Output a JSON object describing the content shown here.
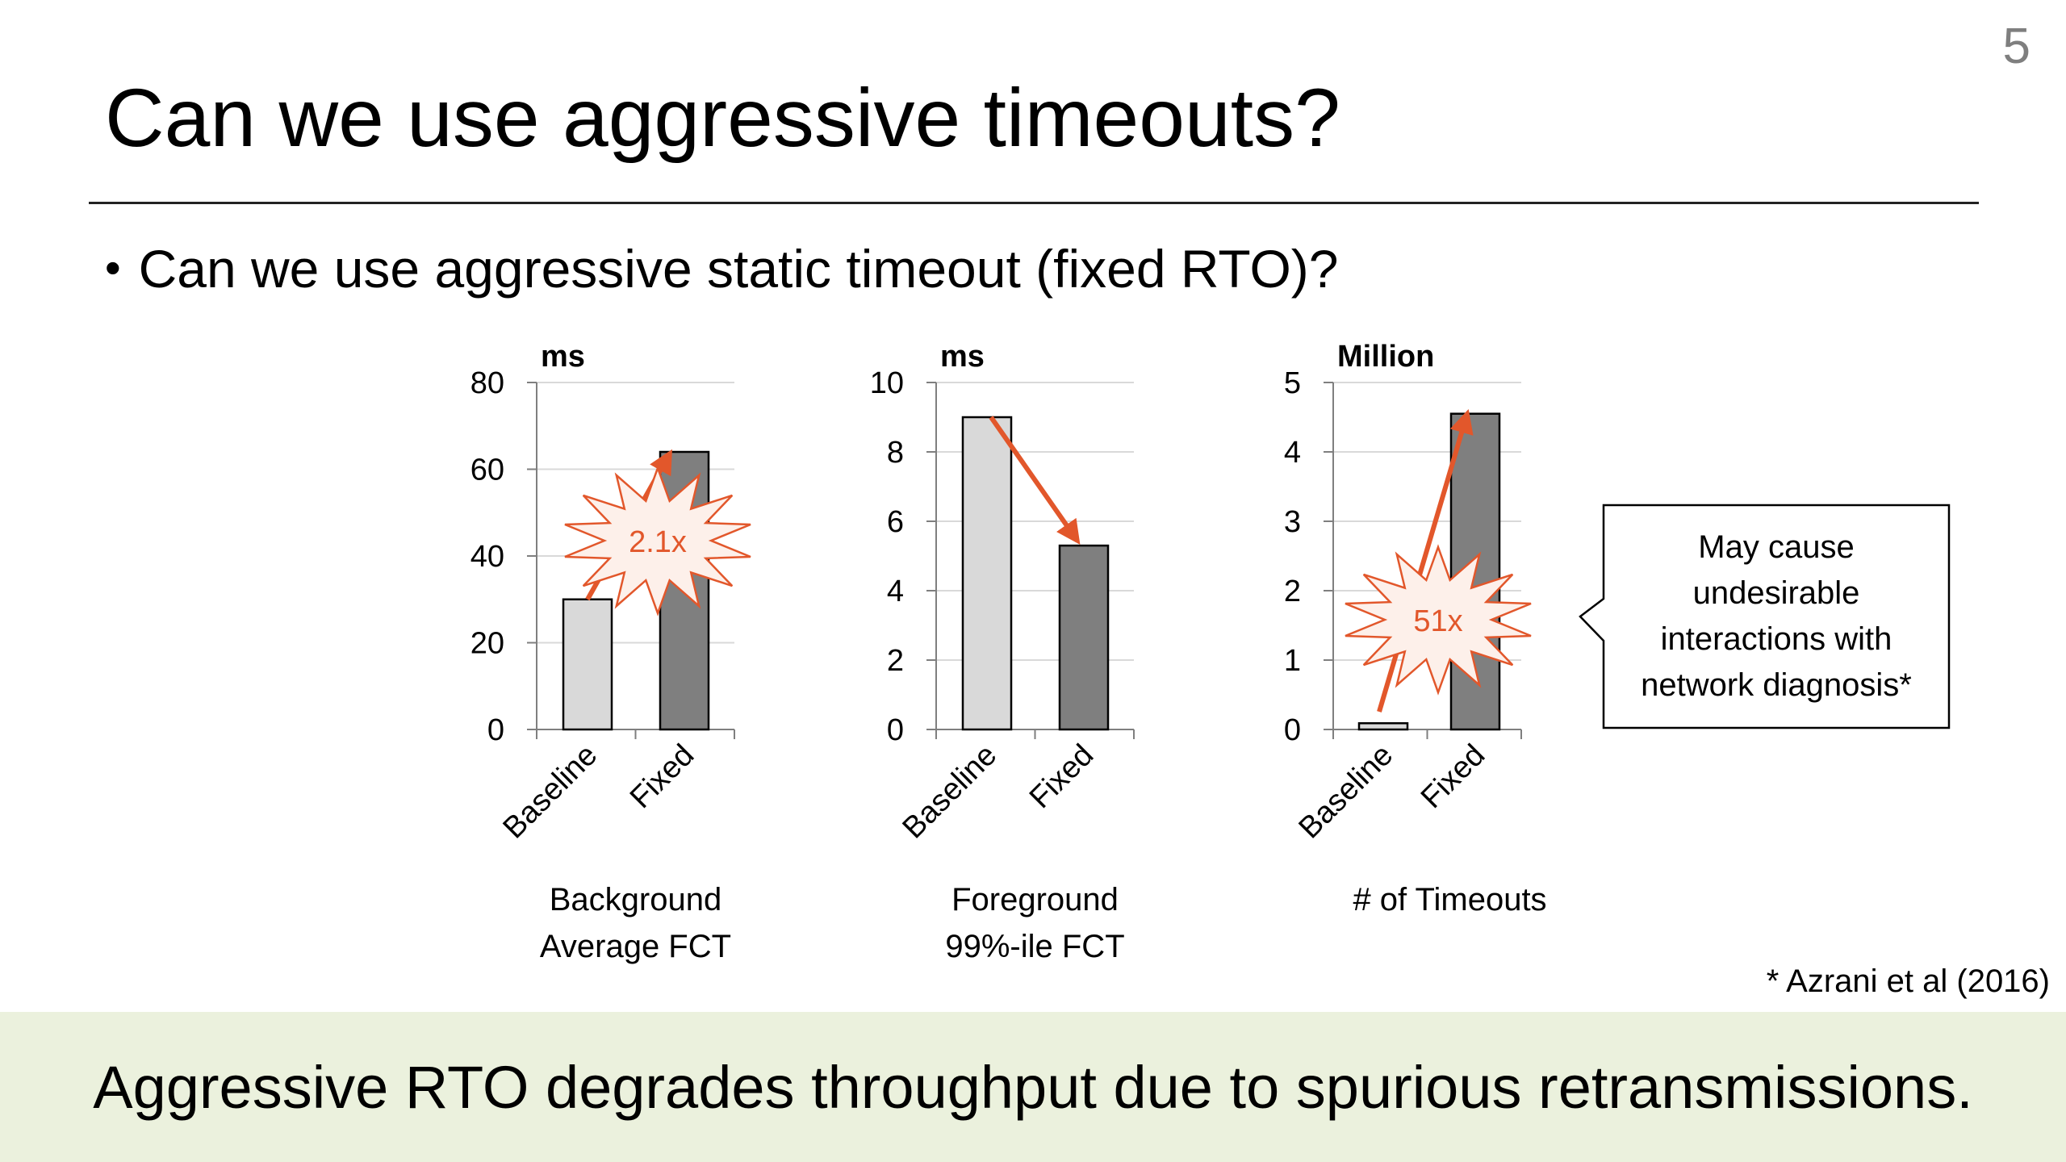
{
  "slide": {
    "number": "5",
    "title": "Can we use aggressive timeouts?",
    "bullet": "Can we use aggressive static timeout (fixed RTO)?",
    "callout": [
      "May cause",
      "undesirable",
      "interactions with",
      "network diagnosis*"
    ],
    "footnote": "* Azrani et al (2016)",
    "banner": "Aggressive RTO degrades throughput due to spurious retransmissions."
  },
  "colors": {
    "baseline_bar": "#d9d9d9",
    "fixed_bar": "#7f7f7f",
    "accent": "#e2572b",
    "banner_bg": "#ebf1dd"
  },
  "chart_data": [
    {
      "type": "bar",
      "unit": "ms",
      "categories": [
        "Baseline",
        "Fixed"
      ],
      "values": [
        30,
        64
      ],
      "ylim": [
        0,
        80
      ],
      "yticks": [
        "0",
        "20",
        "40",
        "60",
        "80"
      ],
      "xlabel": [
        "Background",
        "Average FCT"
      ],
      "annotation": "2.1x",
      "grid": true
    },
    {
      "type": "bar",
      "unit": "ms",
      "categories": [
        "Baseline",
        "Fixed"
      ],
      "values": [
        9.0,
        5.3
      ],
      "ylim": [
        0,
        10
      ],
      "yticks": [
        "0",
        "2",
        "4",
        "6",
        "8",
        "10"
      ],
      "xlabel": [
        "Foreground",
        "99%-ile FCT"
      ],
      "annotation": "",
      "grid": true
    },
    {
      "type": "bar",
      "unit": "Million",
      "categories": [
        "Baseline",
        "Fixed"
      ],
      "values": [
        0.09,
        4.55
      ],
      "ylim": [
        0,
        5
      ],
      "yticks": [
        "0",
        "1",
        "2",
        "3",
        "4",
        "5"
      ],
      "xlabel": [
        "# of Timeouts"
      ],
      "annotation": "51x",
      "grid": true
    }
  ]
}
